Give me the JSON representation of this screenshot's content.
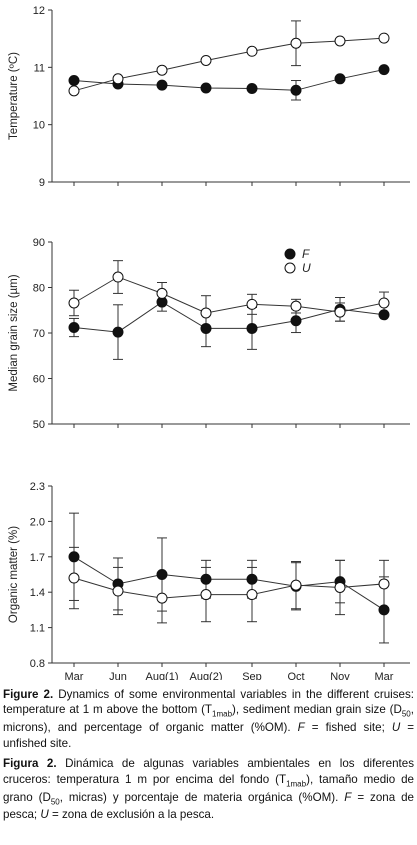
{
  "chart_data": [
    {
      "type": "line",
      "title": "",
      "xlabel": "",
      "ylabel": "Temperature (ºC)",
      "ylim": [
        9,
        12
      ],
      "yticks": [
        "9",
        "10",
        "11",
        "12"
      ],
      "categories": [
        "Mar",
        "Jun",
        "Aug(1)",
        "Aug(2)",
        "Sep",
        "Oct",
        "Nov",
        "Mar"
      ],
      "series": [
        {
          "name": "F",
          "marker": "filled",
          "values": [
            10.77,
            10.71,
            10.69,
            10.64,
            10.63,
            10.6,
            10.8,
            10.96
          ],
          "errors": [
            null,
            null,
            null,
            null,
            null,
            0.17,
            null,
            null
          ]
        },
        {
          "name": "U",
          "marker": "open",
          "values": [
            10.59,
            10.8,
            10.95,
            11.12,
            11.28,
            11.42,
            11.46,
            11.51
          ],
          "errors": [
            null,
            null,
            null,
            null,
            null,
            0.39,
            null,
            null
          ]
        }
      ]
    },
    {
      "type": "line",
      "title": "",
      "xlabel": "",
      "ylabel": "Median grain size (µm)",
      "ylim": [
        50,
        90
      ],
      "yticks": [
        "50",
        "60",
        "70",
        "80",
        "90"
      ],
      "categories": [
        "Mar",
        "Jun",
        "Aug(1)",
        "Aug(2)",
        "Sep",
        "Oct",
        "Nov",
        "Mar"
      ],
      "legend": {
        "position": "top-center",
        "entries": [
          "F",
          "U"
        ]
      },
      "series": [
        {
          "name": "F",
          "marker": "filled",
          "values": [
            71.2,
            70.2,
            76.8,
            71.0,
            71.0,
            72.7,
            75.2,
            74.0
          ],
          "errors": [
            2.0,
            6.0,
            2.0,
            4.0,
            4.6,
            2.6,
            2.6,
            null
          ]
        },
        {
          "name": "U",
          "marker": "open",
          "values": [
            76.6,
            82.3,
            78.7,
            74.4,
            76.3,
            75.9,
            74.6,
            76.6
          ],
          "errors": [
            2.8,
            3.6,
            2.4,
            3.8,
            2.2,
            1.5,
            2.0,
            2.4
          ]
        }
      ]
    },
    {
      "type": "line",
      "title": "",
      "xlabel": "",
      "ylabel": "Organic matter (%)",
      "ylim": [
        0.8,
        2.3
      ],
      "yticks": [
        "0.8",
        "1.1",
        "1.4",
        "1.7",
        "2.0",
        "2.3"
      ],
      "categories": [
        "Mar",
        "Jun",
        "Aug(1)",
        "Aug(2)",
        "Sep",
        "Oct",
        "Nov",
        "Mar"
      ],
      "series": [
        {
          "name": "F",
          "marker": "filled",
          "values": [
            1.7,
            1.47,
            1.55,
            1.51,
            1.51,
            1.45,
            1.49,
            1.25
          ],
          "errors": [
            0.37,
            0.22,
            0.31,
            0.16,
            0.16,
            0.2,
            0.18,
            0.28
          ]
        },
        {
          "name": "U",
          "marker": "open",
          "values": [
            1.52,
            1.41,
            1.35,
            1.38,
            1.38,
            1.46,
            1.44,
            1.47
          ],
          "errors": [
            0.26,
            0.2,
            0.21,
            0.23,
            0.23,
            0.2,
            0.23,
            0.2
          ]
        }
      ]
    }
  ],
  "caption": {
    "en": {
      "label": "Figure 2.",
      "t1": " Dynamics of some environmental variables in the different cruises: temperature at 1 m above the bottom (T",
      "s1": "1mab",
      "t2": "), sediment median grain size (D",
      "s2": "50",
      "t3": ", microns), and percentage of organic matter (%OM). ",
      "f": "F",
      "t4": " = fished site; ",
      "u": "U",
      "t5": " = unfished site."
    },
    "es": {
      "label": "Figura 2.",
      "t1": " Dinámica de algunas variables ambientales en los diferentes cruceros: temperatura 1 m por encima del fondo (T",
      "s1": "1mab",
      "t2": "), tamaño medio de grano (D",
      "s2": "50",
      "t3": ", micras) y porcentaje de materia orgánica (%OM). ",
      "f": "F",
      "t4": " = zona de pesca; ",
      "u": "U",
      "t5": " = zona de exclusión a la pesca."
    }
  }
}
